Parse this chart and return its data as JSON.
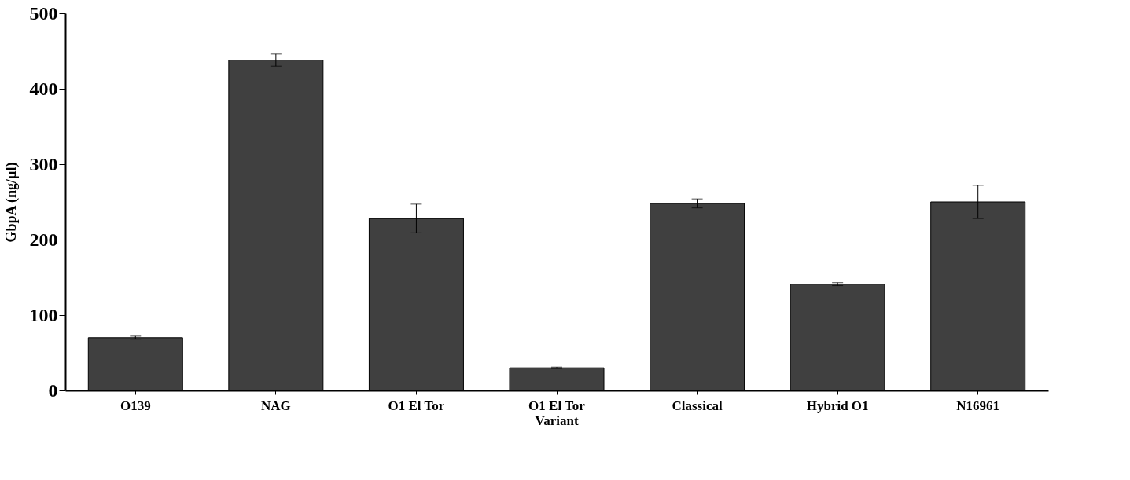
{
  "chart_data": {
    "type": "bar",
    "ylabel": "GbpA (ng/µl)",
    "categories": [
      "O139",
      "NAG",
      "O1 El Tor",
      "O1 El Tor\nVariant",
      "Classical",
      "Hybrid O1",
      "N16961"
    ],
    "values": [
      70,
      438,
      228,
      30,
      248,
      141,
      250
    ],
    "errors": [
      2,
      8,
      19,
      1,
      6,
      2,
      22
    ],
    "color": "#404040",
    "ylim": [
      0,
      500
    ],
    "yticks": [
      0,
      100,
      200,
      300,
      400,
      500
    ],
    "grid": false
  }
}
